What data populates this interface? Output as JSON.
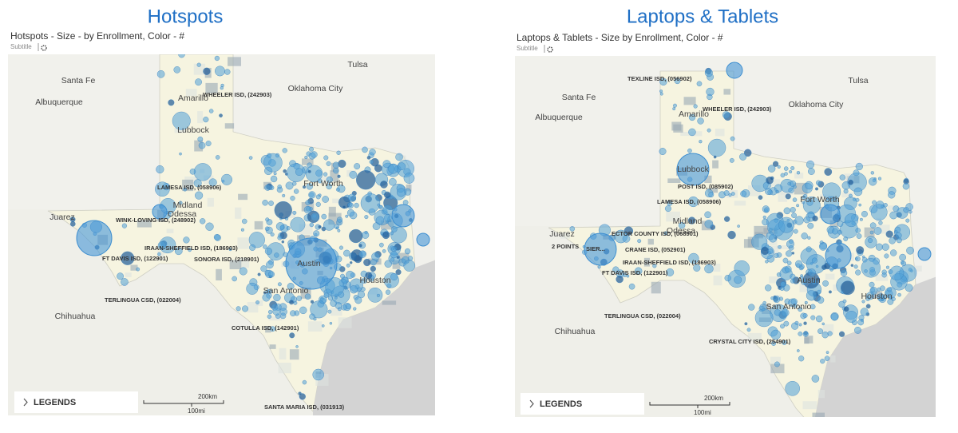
{
  "panels": [
    {
      "title": "Hotspots",
      "heading": "Hotspots - Size - by Enrollment, Color - #",
      "subtitle": "Subtitle",
      "places": [
        "Tulsa",
        "Santa Fe",
        "Oklahoma City",
        "Albuquerque",
        "Amarillo",
        "Lubbock",
        "Midland",
        "Odessa",
        "Fort Worth",
        "Juarez",
        "Austin",
        "San Antonio",
        "Houston",
        "Chihuahua"
      ],
      "districts": [
        "WHEELER ISD, (242903)",
        "LAMESA ISD, (058906)",
        "WINK-LOVING ISD, (248902)",
        "IRAAN-SHEFFIELD ISD, (186903)",
        "FT DAVIS ISD, (122901)",
        "SONORA ISD, (218901)",
        "TERLINGUA CSD, (022004)",
        "COTULLA ISD, (142901)",
        "SANTA MARIA ISD, (031913)"
      ],
      "legends": "LEGENDS",
      "scale": {
        "km": "200km",
        "mi": "100mi"
      }
    },
    {
      "title": "Laptops & Tablets",
      "heading": "Laptops & Tablets - Size by Enrollment, Color - #",
      "subtitle": "Subtitle",
      "places": [
        "Tulsa",
        "Santa Fe",
        "Oklahoma City",
        "Albuquerque",
        "Amarillo",
        "Lubbock",
        "Midland",
        "Odessa",
        "Fort Worth",
        "Juarez",
        "Austin",
        "San Antonio",
        "Houston",
        "Chihuahua"
      ],
      "districts": [
        "TEXLINE ISD, (056902)",
        "WHEELER ISD, (242903)",
        "POST ISD, (085902)",
        "LAMESA ISD, (058906)",
        "ECTOR COUNTY ISD, (068901)",
        "2 POINTS",
        "SIER...",
        "CRANE ISD, (052901)",
        "IRAAN-SHEFFIELD ISD, (186903)",
        "FT DAVIS ISD, (122901)",
        "TERLINGUA CSD, (022004)",
        "CRYSTAL CITY ISD, (254901)"
      ],
      "legends": "LEGENDS",
      "scale": {
        "km": "200km",
        "mi": "100mi"
      }
    }
  ]
}
